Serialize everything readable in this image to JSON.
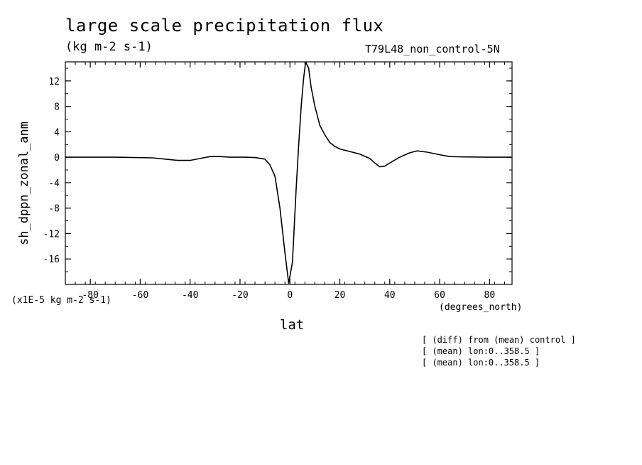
{
  "chart_data": {
    "type": "line",
    "title": "large scale precipitation flux",
    "subtitle": "(kg m-2 s-1)",
    "run_id": "T79L48_non_control-5N",
    "ylabel": "sh_dppn_zonal_anm",
    "y_units": "(x1E-5 kg m-2 s-1)",
    "xlabel": "lat",
    "x_units": "(degrees_north)",
    "xlim": [
      -90,
      89
    ],
    "ylim": [
      -20,
      15
    ],
    "x_ticks": [
      -80,
      -60,
      -40,
      -20,
      0,
      20,
      40,
      60,
      80
    ],
    "x_tick_labels": [
      "-80",
      "-60",
      "-40",
      "-20",
      "0",
      "20",
      "40",
      "60",
      "80"
    ],
    "y_ticks": [
      12,
      8,
      4,
      0,
      -4,
      -8,
      -12,
      -16
    ],
    "y_tick_labels": [
      "12",
      "8",
      "4",
      "0",
      "-4",
      "-8",
      "-12",
      "-16"
    ],
    "grid": false,
    "series": [
      {
        "points": [
          [
            -90,
            0.0
          ],
          [
            -70,
            0.0
          ],
          [
            -55,
            -0.1
          ],
          [
            -50,
            -0.3
          ],
          [
            -45,
            -0.5
          ],
          [
            -40,
            -0.5
          ],
          [
            -36,
            -0.2
          ],
          [
            -32,
            0.1
          ],
          [
            -28,
            0.1
          ],
          [
            -24,
            0.0
          ],
          [
            -18,
            0.0
          ],
          [
            -14,
            -0.05
          ],
          [
            -10,
            -0.3
          ],
          [
            -8,
            -1.2
          ],
          [
            -6,
            -3.0
          ],
          [
            -4,
            -8.0
          ],
          [
            -2,
            -15.0
          ],
          [
            -0.5,
            -19.8
          ],
          [
            1,
            -16.5
          ],
          [
            2.5,
            -5.0
          ],
          [
            3.5,
            2.0
          ],
          [
            4.5,
            8.0
          ],
          [
            5.5,
            12.5
          ],
          [
            6.3,
            15.0
          ],
          [
            7.5,
            14.0
          ],
          [
            8.5,
            11.0
          ],
          [
            10,
            8.0
          ],
          [
            12,
            5.0
          ],
          [
            14,
            3.5
          ],
          [
            16,
            2.3
          ],
          [
            18,
            1.7
          ],
          [
            20,
            1.3
          ],
          [
            24,
            0.9
          ],
          [
            28,
            0.5
          ],
          [
            32,
            -0.2
          ],
          [
            34,
            -0.9
          ],
          [
            36,
            -1.5
          ],
          [
            38,
            -1.4
          ],
          [
            40,
            -0.9
          ],
          [
            44,
            0.0
          ],
          [
            48,
            0.7
          ],
          [
            51,
            1.0
          ],
          [
            55,
            0.8
          ],
          [
            60,
            0.4
          ],
          [
            64,
            0.1
          ],
          [
            70,
            0.05
          ],
          [
            80,
            0.0
          ],
          [
            89,
            0.0
          ]
        ]
      }
    ]
  },
  "notes": [
    "[ (diff) from (mean) control ]",
    "[ (mean) lon:0..358.5 ]",
    "[ (mean) lon:0..358.5 ]"
  ]
}
